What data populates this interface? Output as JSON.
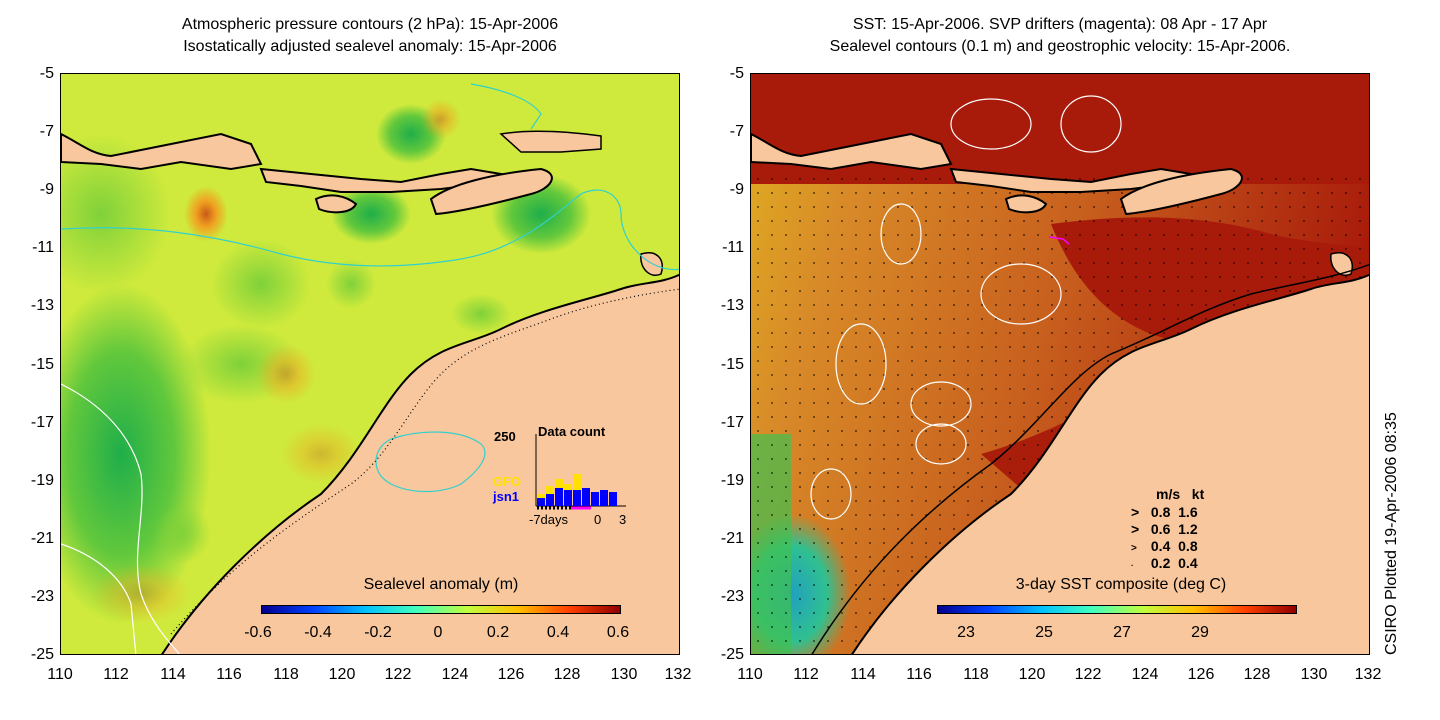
{
  "left_panel": {
    "title_line1": "Atmospheric pressure contours (2 hPa): 15-Apr-2006",
    "title_line2": "Isostatically adjusted sealevel anomaly: 15-Apr-2006",
    "colorbar_title": "Sealevel anomaly (m)",
    "colorbar_ticks": [
      "-0.6",
      "-0.4",
      "-0.2",
      "0",
      "0.2",
      "0.4",
      "0.6"
    ],
    "inset": {
      "title": "Data count",
      "y_max_label": "250",
      "series_a": "GFO",
      "series_b": "jsn1",
      "x_label_left": "-7days",
      "x_label_mid": "0",
      "x_label_right": "3"
    }
  },
  "right_panel": {
    "title_line1": "SST: 15-Apr-2006. SVP drifters (magenta): 08 Apr - 17 Apr",
    "title_line2": "Sealevel contours (0.1 m) and geostrophic velocity: 15-Apr-2006.",
    "colorbar_title": "3-day SST composite (deg C)",
    "colorbar_ticks": [
      "23",
      "25",
      "27",
      "29"
    ],
    "velocity_legend": {
      "header_ms": "m/s",
      "header_kt": "kt",
      "rows": [
        {
          "ms": "0.8",
          "kt": "1.6"
        },
        {
          "ms": "0.6",
          "kt": "1.2"
        },
        {
          "ms": "0.4",
          "kt": "0.8"
        },
        {
          "ms": "0.2",
          "kt": "0.4"
        }
      ]
    }
  },
  "axes": {
    "lat_ticks": [
      "-5",
      "-7",
      "-9",
      "-11",
      "-13",
      "-15",
      "-17",
      "-19",
      "-21",
      "-23",
      "-25"
    ],
    "lon_ticks": [
      "110",
      "112",
      "114",
      "116",
      "118",
      "120",
      "122",
      "124",
      "126",
      "128",
      "130",
      "132"
    ]
  },
  "credit": "CSIRO Plotted 19-Apr-2006 08:35",
  "colors": {
    "land": "#f9c79d",
    "sla_background": "#d8ee3a",
    "sst_background": "#c8601e",
    "sst_warm": "#a81a0a",
    "coast": "#000000"
  }
}
